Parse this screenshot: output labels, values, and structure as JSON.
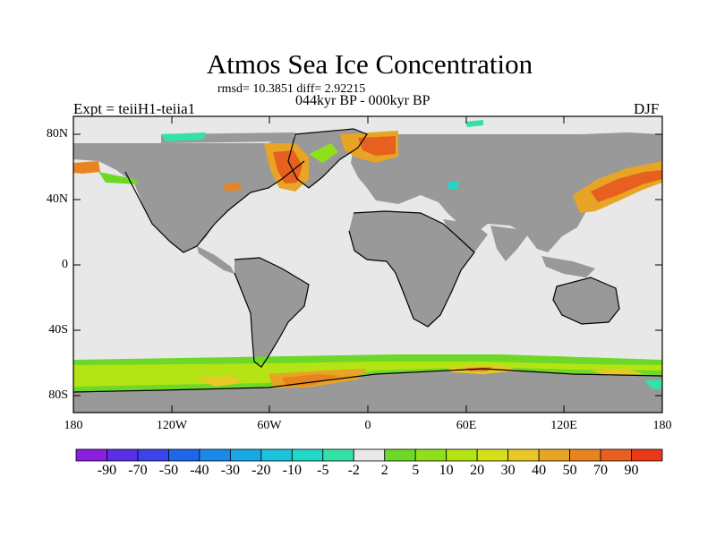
{
  "title": "Atmos Sea Ice Concentration",
  "stats": "rmsd= 10.3851 diff= 2.92215",
  "period": "044kyr BP - 000kyr BP",
  "experiment": "Expt = teiiH1-teiia1",
  "season": "DJF",
  "lat_ticks": [
    "80N",
    "40N",
    "0",
    "40S",
    "80S"
  ],
  "lon_ticks": [
    "180",
    "120W",
    "60W",
    "0",
    "60E",
    "120E",
    "180"
  ],
  "colorbar": {
    "labels": [
      "-90",
      "-70",
      "-50",
      "-40",
      "-30",
      "-20",
      "-10",
      "-5",
      "-2",
      "2",
      "5",
      "10",
      "20",
      "30",
      "40",
      "50",
      "70",
      "90"
    ],
    "colors": [
      "#8a1fe0",
      "#5a2ee6",
      "#3a44ea",
      "#1e66ea",
      "#1a8ae8",
      "#18a8e4",
      "#1ac4da",
      "#20d8c6",
      "#34e2a8",
      "#e8e8e8",
      "#6ed828",
      "#8ee01a",
      "#b4e414",
      "#d6e01a",
      "#e8c824",
      "#e8a424",
      "#e88420",
      "#e86020",
      "#e83a18"
    ]
  },
  "map_colors": {
    "ocean": "#e8e8e8",
    "land": "#999999",
    "coast": "#000000"
  }
}
